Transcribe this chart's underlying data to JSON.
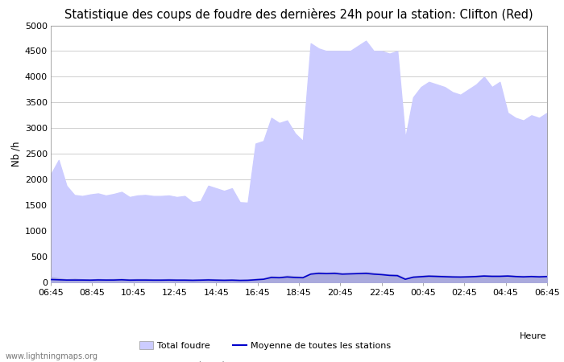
{
  "title": "Statistique des coups de foudre des dernières 24h pour la station: Clifton (Red)",
  "ylabel": "Nb /h",
  "xlabel": "Heure",
  "watermark": "www.lightningmaps.org",
  "ylim": [
    0,
    5000
  ],
  "yticks": [
    0,
    500,
    1000,
    1500,
    2000,
    2500,
    3000,
    3500,
    4000,
    4500,
    5000
  ],
  "xtick_labels": [
    "06:45",
    "08:45",
    "10:45",
    "12:45",
    "14:45",
    "16:45",
    "18:45",
    "20:45",
    "22:45",
    "00:45",
    "02:45",
    "04:45",
    "06:45"
  ],
  "total_foudre_color": "#ccccff",
  "clifton_color": "#aaaadd",
  "moyenne_color": "#0000cc",
  "background_color": "#ffffff",
  "grid_color": "#bbbbbb",
  "title_fontsize": 10.5,
  "axis_fontsize": 8.5,
  "tick_fontsize": 8,
  "total_foudre": [
    2100,
    2380,
    1880,
    1700,
    1680,
    1710,
    1730,
    1690,
    1720,
    1760,
    1660,
    1690,
    1700,
    1680,
    1680,
    1690,
    1660,
    1680,
    1560,
    1580,
    1880,
    1830,
    1780,
    1830,
    1560,
    1550,
    2700,
    2750,
    3200,
    3100,
    3150,
    2900,
    2750,
    4650,
    4550,
    4500,
    4500,
    4500,
    4500,
    4600,
    4700,
    4500,
    4500,
    4450,
    4500,
    2800,
    3600,
    3800,
    3900,
    3850,
    3800,
    3700,
    3650,
    3750,
    3850,
    4000,
    3800,
    3900,
    3300,
    3200,
    3150,
    3250,
    3200,
    3300
  ],
  "clifton_foudre": [
    100,
    80,
    60,
    70,
    60,
    55,
    65,
    60,
    65,
    70,
    60,
    65,
    65,
    60,
    60,
    65,
    60,
    60,
    55,
    60,
    65,
    60,
    55,
    60,
    50,
    55,
    70,
    80,
    120,
    110,
    130,
    120,
    110,
    180,
    200,
    190,
    200,
    180,
    185,
    190,
    200,
    185,
    170,
    155,
    150,
    80,
    120,
    130,
    140,
    135,
    130,
    125,
    120,
    125,
    130,
    140,
    135,
    135,
    140,
    130,
    125,
    130,
    125,
    130
  ],
  "moyenne": [
    55,
    50,
    45,
    45,
    45,
    43,
    47,
    45,
    45,
    50,
    43,
    45,
    45,
    43,
    43,
    45,
    43,
    43,
    40,
    43,
    47,
    43,
    40,
    43,
    38,
    40,
    50,
    60,
    95,
    90,
    105,
    95,
    90,
    160,
    175,
    170,
    175,
    160,
    165,
    170,
    175,
    160,
    150,
    135,
    130,
    60,
    100,
    110,
    120,
    115,
    110,
    105,
    103,
    107,
    113,
    123,
    117,
    117,
    123,
    113,
    107,
    113,
    107,
    113
  ]
}
